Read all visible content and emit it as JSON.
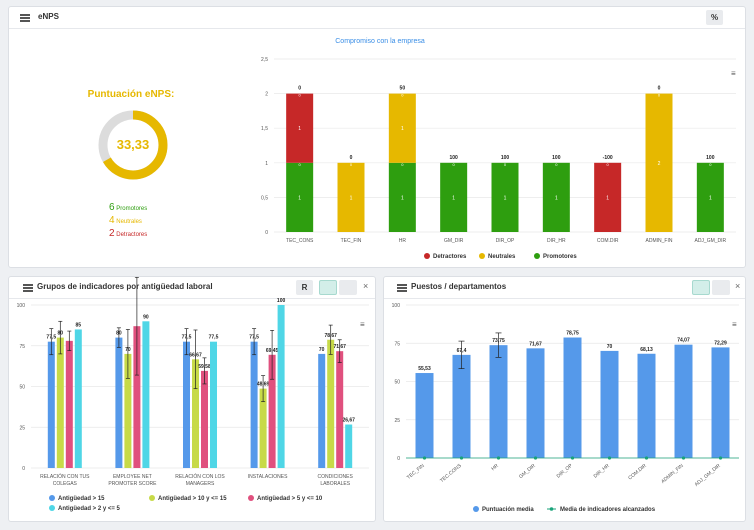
{
  "enps": {
    "title": "eNPS",
    "pct_btn": "%",
    "score_title": "Puntuación eNPS:",
    "score": "33,33",
    "promotores_n": "6",
    "promotores_lbl": "Promotores",
    "neutrales_n": "4",
    "neutrales_lbl": "Neutrales",
    "detractores_n": "2",
    "detractores_lbl": "Detractores"
  },
  "colors": {
    "detractor": "#c62828",
    "neutral": "#e6b800",
    "promotor": "#2e9e0f",
    "blue": "#5599ea",
    "lime": "#c7da48",
    "pink": "#e0507e",
    "cyan": "#4fd6e6",
    "teal": "#1aa37a"
  },
  "chart_data": [
    {
      "type": "bar",
      "title": "Compromiso con la empresa",
      "stacked": true,
      "categories": [
        "TEC_CONS",
        "TEC_FIN",
        "HR",
        "GM_DIR",
        "DIR_OP",
        "DIR_HR",
        "COM.DIR",
        "ADMIN_FIN",
        "ADJ_GM_DIR"
      ],
      "series": [
        {
          "name": "Detractores",
          "values": [
            1,
            0,
            0,
            0,
            0,
            0,
            1,
            0,
            0
          ]
        },
        {
          "name": "Neutrales",
          "values": [
            0,
            1,
            1,
            0,
            0,
            0,
            0,
            2,
            0
          ]
        },
        {
          "name": "Promotores",
          "values": [
            1,
            0,
            1,
            1,
            1,
            1,
            0,
            0,
            1
          ]
        }
      ],
      "top_labels": [
        "0",
        "0",
        "50",
        "100",
        "100",
        "100",
        "-100",
        "0",
        "100"
      ],
      "yticks": [
        "0",
        "0,5",
        "1",
        "1,5",
        "2",
        "2,5"
      ],
      "ylim": [
        0,
        2.5
      ]
    },
    {
      "type": "bar",
      "title": "Grupos de indicadores por antigüedad laboral",
      "categories": [
        "RELACIÓN CON TUS|COLEGAS",
        "EMPLOYEE NET|PROMOTER SCORE",
        "RELACIÓN CON LOS|MANAGERS",
        "INSTALACIONES",
        "CONDICIONES|LABORALES"
      ],
      "series": [
        {
          "name": "Antigüedad > 15",
          "values": [
            77.5,
            80,
            77.5,
            77.5,
            70
          ]
        },
        {
          "name": "Antigüedad > 10 y <= 15",
          "values": [
            80,
            70,
            66.67,
            48.69,
            78.67
          ]
        },
        {
          "name": "Antigüedad > 5 y <= 10",
          "values": [
            78,
            87,
            59.58,
            69.45,
            71.67
          ]
        },
        {
          "name": "Antigüedad > 2 y <= 5",
          "values": [
            85,
            90,
            77.5,
            100,
            26.67
          ]
        }
      ],
      "labels": [
        [
          "77,5",
          "80",
          "",
          "85"
        ],
        [
          "80",
          "70",
          "",
          "90"
        ],
        [
          "77,5",
          "66,67",
          "59,58",
          "77,5"
        ],
        [
          "77,5",
          "48,69",
          "69,45",
          "100"
        ],
        [
          "70",
          "78,67",
          "71,67",
          "26,67"
        ]
      ],
      "errors": [
        [
          8,
          10,
          6,
          0
        ],
        [
          6,
          15,
          30,
          0
        ],
        [
          8,
          18,
          8,
          0
        ],
        [
          8,
          8,
          15,
          0
        ],
        [
          0,
          9,
          7,
          0
        ]
      ],
      "yticks": [
        "0",
        "25",
        "50",
        "75",
        "100"
      ],
      "ylim": [
        0,
        100
      ]
    },
    {
      "type": "bar",
      "title": "Puestos / departamentos",
      "categories": [
        "TEC_FIN",
        "TEC.CONS",
        "HR",
        "GM_DIR",
        "DIR_OP",
        "DIR_HR",
        "COM.DIR",
        "ADMIN_FIN",
        "ADJ_GM_DIR"
      ],
      "series": [
        {
          "name": "Puntuación media",
          "values": [
            55.53,
            67.4,
            73.75,
            71.67,
            78.75,
            70,
            68.13,
            74.07,
            72.29
          ]
        },
        {
          "name": "Media de indicadores alcanzados",
          "values": [
            0,
            0,
            0,
            0,
            0,
            0,
            0,
            0,
            0
          ]
        }
      ],
      "labels": [
        "55,53",
        "67,4",
        "73,75",
        "71,67",
        "78,75",
        "70",
        "68,13",
        "74,07",
        "72,29"
      ],
      "errors": [
        0,
        9,
        8,
        0,
        0,
        0,
        0,
        0,
        0
      ],
      "yticks": [
        "0",
        "25",
        "50",
        "75",
        "100"
      ],
      "ylim": [
        0,
        100
      ]
    }
  ],
  "grp": {
    "r_btn": "R"
  },
  "close": "×"
}
